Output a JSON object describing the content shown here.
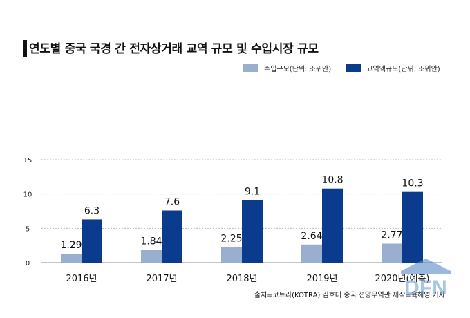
{
  "title": "연도별 중국 국경 간 전자상거래 교역 규모 및 수입시장 규모",
  "source": "출처=코트라(KOTRA) 김호대 중국 선양무역관 제작=육해영 기자",
  "watermark": "DFN",
  "colors": {
    "import": "#9aaed0",
    "trade": "#0b3b8c",
    "grid": "#bbbbbb",
    "text": "#111111"
  },
  "chart_data": {
    "type": "bar",
    "categories": [
      "2016년",
      "2017년",
      "2018년",
      "2019년",
      "2020년(예측)"
    ],
    "series": [
      {
        "name": "수입규모(단위: 조위안)",
        "values": [
          1.29,
          1.84,
          2.25,
          2.64,
          2.77
        ],
        "labels": [
          "1.29",
          "1.84",
          "2.25",
          "2.64",
          "2.77"
        ]
      },
      {
        "name": "교역액규모(단위: 조위안)",
        "values": [
          6.3,
          7.6,
          9.1,
          10.8,
          10.3
        ],
        "labels": [
          "6.3",
          "7.6",
          "9.1",
          "10.8",
          "10.3"
        ]
      }
    ],
    "yticks": [
      "0",
      "5",
      "10",
      "15"
    ],
    "ylim": [
      0,
      15
    ],
    "grid": true,
    "legend": "top-right"
  }
}
